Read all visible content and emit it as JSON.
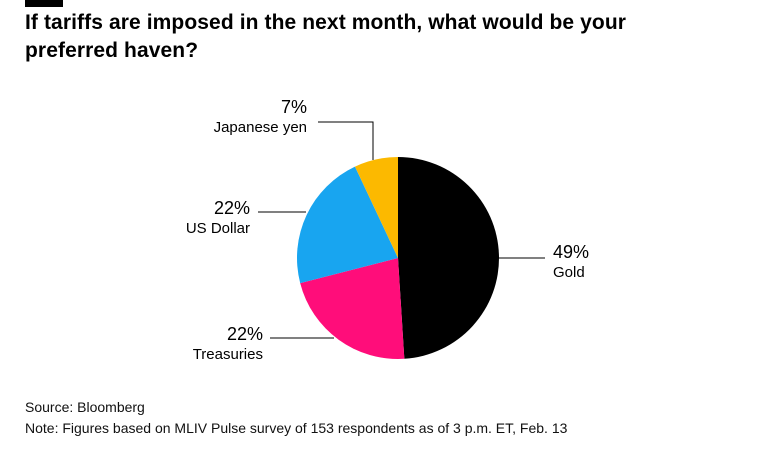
{
  "header": {
    "marker_color": "#000000"
  },
  "chart_data": {
    "type": "pie",
    "title": "If tariffs are imposed in the next month, what would be your preferred haven?",
    "unit": "%",
    "direction": "clockwise",
    "start_angle_deg": 0,
    "legend": "none",
    "slices": [
      {
        "label": "Gold",
        "value": 49,
        "pct_label": "49%",
        "color": "#000000",
        "label_side": "right"
      },
      {
        "label": "Treasuries",
        "value": 22,
        "pct_label": "22%",
        "color": "#ff0d7a",
        "label_side": "bottom-left"
      },
      {
        "label": "US Dollar",
        "value": 22,
        "pct_label": "22%",
        "color": "#18a5f0",
        "label_side": "left"
      },
      {
        "label": "Japanese yen",
        "value": 7,
        "pct_label": "7%",
        "color": "#fcb900",
        "label_side": "top"
      }
    ]
  },
  "footer": {
    "source": "Source: Bloomberg",
    "note": "Note: Figures based on MLIV Pulse survey of 153 respondents as of 3 p.m. ET, Feb. 13"
  }
}
